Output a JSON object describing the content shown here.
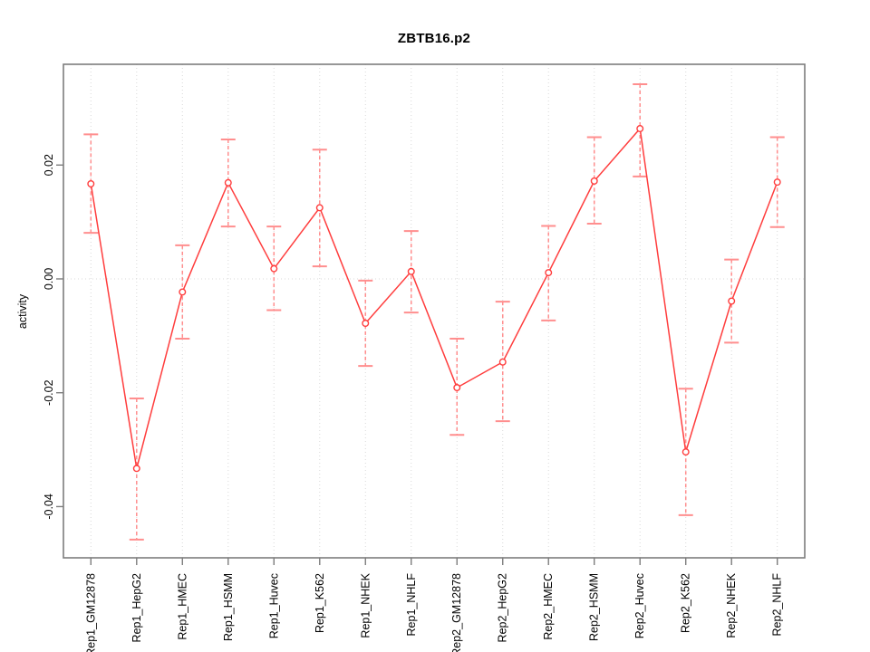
{
  "chart_data": {
    "type": "line",
    "title": "ZBTB16.p2",
    "xlabel": "",
    "ylabel": "activity",
    "legend": "none",
    "categories": [
      "Rep1_GM12878",
      "Rep1_HepG2",
      "Rep1_HMEC",
      "Rep1_HSMM",
      "Rep1_Huvec",
      "Rep1_K562",
      "Rep1_NHEK",
      "Rep1_NHLF",
      "Rep2_GM12878",
      "Rep2_HepG2",
      "Rep2_HMEC",
      "Rep2_HSMM",
      "Rep2_Huvec",
      "Rep2_K562",
      "Rep2_NHEK",
      "Rep2_NHLF"
    ],
    "values": [
      0.0167,
      -0.0333,
      -0.0023,
      0.0169,
      0.0018,
      0.0125,
      -0.0078,
      0.0013,
      -0.0191,
      -0.0146,
      0.0011,
      0.0172,
      0.0264,
      -0.0304,
      -0.0039,
      0.017
    ],
    "error_high": [
      0.0254,
      -0.021,
      0.0059,
      0.0245,
      0.0092,
      0.0227,
      -0.0003,
      0.0084,
      -0.0105,
      -0.004,
      0.0093,
      0.0249,
      0.0342,
      -0.0193,
      0.0034,
      0.0249
    ],
    "error_low": [
      0.0081,
      -0.0458,
      -0.0105,
      0.0092,
      -0.0055,
      0.0022,
      -0.0153,
      -0.0059,
      -0.0274,
      -0.025,
      -0.0073,
      0.0097,
      0.018,
      -0.0415,
      -0.0112,
      0.0091
    ],
    "yticks": [
      -0.04,
      -0.02,
      0,
      0.02
    ],
    "ytick_labels": [
      "-0.04",
      "-0.02",
      "0.00",
      "0.02"
    ],
    "ylim": [
      -0.049,
      0.0377
    ],
    "xlim": [
      0.4,
      16.6
    ],
    "grid": {
      "vertical_at_each_category": true,
      "horizontal_at_zero": true,
      "style": "dotted"
    },
    "colors": {
      "series": "#ff3d3d",
      "error_bar": "#ff8e8e",
      "grid": "#d9d9d9",
      "axis": "#7d7d7d",
      "text": "#000000",
      "background": "#ffffff"
    }
  }
}
